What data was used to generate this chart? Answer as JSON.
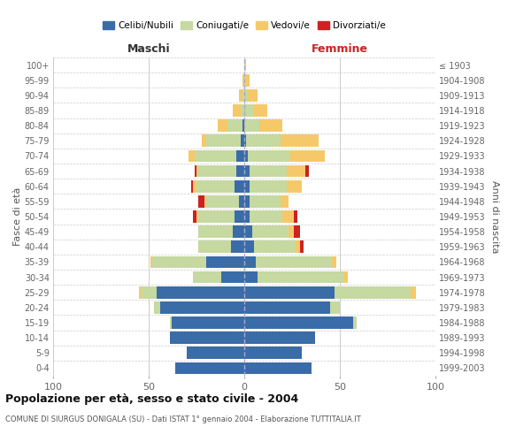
{
  "age_groups": [
    "0-4",
    "5-9",
    "10-14",
    "15-19",
    "20-24",
    "25-29",
    "30-34",
    "35-39",
    "40-44",
    "45-49",
    "50-54",
    "55-59",
    "60-64",
    "65-69",
    "70-74",
    "75-79",
    "80-84",
    "85-89",
    "90-94",
    "95-99",
    "100+"
  ],
  "birth_years": [
    "1999-2003",
    "1994-1998",
    "1989-1993",
    "1984-1988",
    "1979-1983",
    "1974-1978",
    "1969-1973",
    "1964-1968",
    "1959-1963",
    "1954-1958",
    "1949-1953",
    "1944-1948",
    "1939-1943",
    "1934-1938",
    "1929-1933",
    "1924-1928",
    "1919-1923",
    "1914-1918",
    "1909-1913",
    "1904-1908",
    "≤ 1903"
  ],
  "colors": {
    "celibi": "#3a6ca8",
    "coniugati": "#c5d9a0",
    "vedovi": "#f5c96a",
    "divorziati": "#cc2222"
  },
  "males": {
    "celibi": [
      36,
      30,
      39,
      38,
      44,
      46,
      12,
      20,
      7,
      6,
      5,
      3,
      5,
      4,
      4,
      2,
      1,
      0,
      0,
      0,
      0
    ],
    "coniugati": [
      0,
      0,
      0,
      1,
      3,
      8,
      15,
      28,
      17,
      18,
      19,
      17,
      20,
      20,
      22,
      18,
      8,
      2,
      1,
      0,
      0
    ],
    "vedovi": [
      0,
      0,
      0,
      0,
      0,
      1,
      0,
      1,
      0,
      0,
      1,
      1,
      2,
      1,
      3,
      2,
      5,
      4,
      2,
      1,
      0
    ],
    "divorziati": [
      0,
      0,
      0,
      0,
      0,
      0,
      0,
      0,
      0,
      0,
      2,
      3,
      1,
      1,
      0,
      0,
      0,
      0,
      0,
      0,
      0
    ]
  },
  "females": {
    "celibi": [
      35,
      30,
      37,
      57,
      45,
      47,
      7,
      6,
      5,
      4,
      3,
      3,
      3,
      3,
      2,
      1,
      0,
      0,
      0,
      0,
      0
    ],
    "coniugati": [
      0,
      0,
      0,
      2,
      5,
      40,
      45,
      40,
      22,
      19,
      17,
      16,
      19,
      19,
      22,
      18,
      8,
      5,
      2,
      1,
      0
    ],
    "vedovi": [
      0,
      0,
      0,
      0,
      0,
      3,
      2,
      2,
      2,
      3,
      6,
      4,
      8,
      10,
      18,
      20,
      12,
      7,
      5,
      2,
      1
    ],
    "divorziati": [
      0,
      0,
      0,
      0,
      0,
      0,
      0,
      0,
      2,
      3,
      2,
      0,
      0,
      2,
      0,
      0,
      0,
      0,
      0,
      0,
      0
    ]
  },
  "xlim": 100,
  "title": "Popolazione per età, sesso e stato civile - 2004",
  "subtitle": "COMUNE DI SIURGUS DONIGALA (SU) - Dati ISTAT 1° gennaio 2004 - Elaborazione TUTTITALIA.IT",
  "ylabel_left": "Fasce di età",
  "ylabel_right": "Anni di nascita",
  "header_left": "Maschi",
  "header_right": "Femmine",
  "legend_labels": [
    "Celibi/Nubili",
    "Coniugati/e",
    "Vedovi/e",
    "Divorziati/e"
  ],
  "background_color": "#ffffff",
  "grid_color": "#cccccc"
}
